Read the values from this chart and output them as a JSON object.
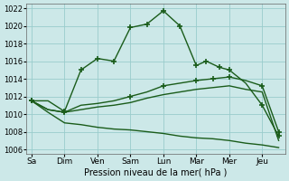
{
  "xlabel": "Pression niveau de la mer( hPa )",
  "ylim": [
    1005.5,
    1022.5
  ],
  "yticks": [
    1006,
    1008,
    1010,
    1012,
    1014,
    1016,
    1018,
    1020,
    1022
  ],
  "x_labels": [
    "Sa",
    "Dim",
    "Ven",
    "Sam",
    "Lun",
    "Mar",
    "Mer",
    "Jeu"
  ],
  "x_positions": [
    0,
    1,
    2,
    3,
    4,
    5,
    6,
    7
  ],
  "bg_color": "#cce8e8",
  "grid_color": "#99cccc",
  "line_color": "#1a5c1a",
  "line1_x": [
    0,
    0.5,
    1,
    1.5,
    2,
    2.5,
    3,
    3.5,
    4,
    4.5,
    5,
    5.3,
    5.7,
    6,
    6.5,
    7,
    7.5
  ],
  "line1_y": [
    1011.5,
    1011.5,
    1010.3,
    1015.0,
    1016.3,
    1016.0,
    1019.8,
    1020.2,
    1021.7,
    1020.0,
    1015.5,
    1016.0,
    1015.3,
    1015.0,
    1013.5,
    1011.0,
    1007.5
  ],
  "line1_markers_x": [
    0,
    1,
    1.5,
    2,
    2.5,
    3,
    3.5,
    4,
    4.5,
    5,
    5.3,
    5.7,
    6,
    7,
    7.5
  ],
  "line1_markers_y": [
    1011.5,
    1010.3,
    1015.0,
    1016.3,
    1016.0,
    1019.8,
    1020.2,
    1021.7,
    1020.0,
    1015.5,
    1016.0,
    1015.3,
    1015.0,
    1011.0,
    1007.5
  ],
  "line2_x": [
    0,
    0.5,
    1,
    1.5,
    2,
    2.5,
    3,
    3.5,
    4,
    4.5,
    5,
    5.5,
    6,
    6.5,
    7,
    7.5
  ],
  "line2_y": [
    1011.5,
    1010.5,
    1010.2,
    1011.0,
    1011.2,
    1011.5,
    1012.0,
    1012.5,
    1013.2,
    1013.5,
    1013.8,
    1014.0,
    1014.2,
    1013.8,
    1013.2,
    1008.0
  ],
  "line2_markers_x": [
    0,
    1,
    3,
    4,
    5,
    5.5,
    6,
    7,
    7.5
  ],
  "line2_markers_y": [
    1011.5,
    1010.2,
    1012.0,
    1013.2,
    1013.8,
    1014.0,
    1014.2,
    1013.2,
    1008.0
  ],
  "line3_x": [
    0,
    0.5,
    1,
    1.5,
    2,
    2.5,
    3,
    3.5,
    4,
    4.5,
    5,
    5.5,
    6,
    6.5,
    7,
    7.5
  ],
  "line3_y": [
    1011.5,
    1010.5,
    1010.2,
    1010.5,
    1010.8,
    1011.0,
    1011.3,
    1011.8,
    1012.2,
    1012.5,
    1012.8,
    1013.0,
    1013.2,
    1012.8,
    1012.5,
    1007.0
  ],
  "line4_x": [
    0,
    0.5,
    1,
    1.5,
    2,
    2.5,
    3,
    3.5,
    4,
    4.5,
    5,
    5.5,
    6,
    6.5,
    7,
    7.5
  ],
  "line4_y": [
    1011.5,
    1010.2,
    1009.0,
    1008.8,
    1008.5,
    1008.3,
    1008.2,
    1008.0,
    1007.8,
    1007.5,
    1007.3,
    1007.2,
    1007.0,
    1006.7,
    1006.5,
    1006.2
  ]
}
